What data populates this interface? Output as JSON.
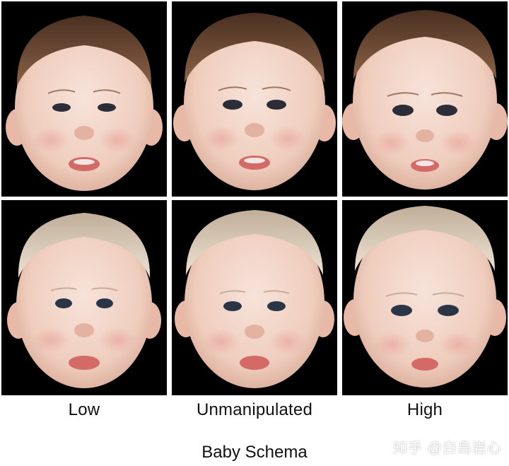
{
  "columns": [
    {
      "label": "Low"
    },
    {
      "label": "Unmanipulated"
    },
    {
      "label": "High"
    }
  ],
  "rows": [
    {
      "hair": "brown"
    },
    {
      "hair": "blonde"
    }
  ],
  "title": "Baby Schema",
  "watermark": "知乎 @白岛岩心",
  "colors": {
    "background": "#ffffff",
    "panel": "#000000",
    "skin": "#f1d4c6",
    "brown_hair": "#6b4a34",
    "blonde_hair": "#d9c9b5",
    "lips": "#d46a66",
    "eyes": "#2b2d38"
  }
}
